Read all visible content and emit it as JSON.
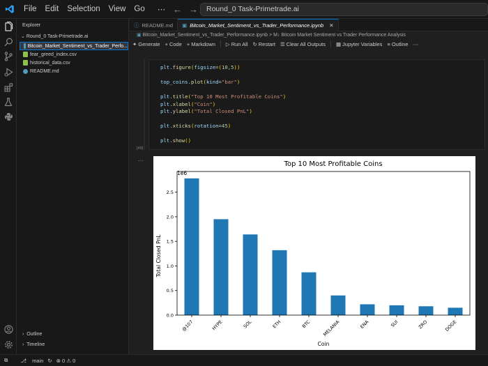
{
  "titlebar": {
    "menu": [
      "File",
      "Edit",
      "Selection",
      "View",
      "Go",
      "⋯"
    ],
    "search_text": "Round_0 Task-Primetrade.ai"
  },
  "sidebar": {
    "title": "Explorer",
    "folder": "Round_0 Task-Primetrade.ai",
    "files": [
      {
        "name": "Bitcoin_Market_Sentiment_vs_Trader_Perfo...",
        "color": "#519aba",
        "selected": true
      },
      {
        "name": "fear_greed_index.csv",
        "color": "#8dc149",
        "selected": false
      },
      {
        "name": "historical_data.csv",
        "color": "#8dc149",
        "selected": false
      },
      {
        "name": "README.md",
        "color": "#519aba",
        "selected": false
      }
    ],
    "outline": "Outline",
    "timeline": "Timeline"
  },
  "tabs": [
    {
      "label": "README.md",
      "active": false
    },
    {
      "label": "Bitcoin_Market_Sentiment_vs_Trader_Performance.ipynb",
      "active": true
    }
  ],
  "breadcrumb": {
    "file": "Bitcoin_Market_Sentiment_vs_Trader_Performance.ipynb",
    "sep": ">",
    "section": "M↓ Bitcoin Market Sentiment vs Trader Performance Analysis"
  },
  "toolbar": {
    "generate": "Generate",
    "code": "Code",
    "markdown": "Markdown",
    "run_all": "Run All",
    "restart": "Restart",
    "clear_outputs": "Clear All Outputs",
    "jupyter_variables": "Jupyter Variables",
    "outline": "Outline",
    "more": "⋯"
  },
  "cell": {
    "exec_count": "[49]",
    "lines": {
      "l1": "plt.figure(figsize=(10,5))",
      "l2": "top_coins.plot(kind=\"bar\")",
      "l3": "plt.title(\"Top 10 Most Profitable Coins\")",
      "l4": "plt.xlabel(\"Coin\")",
      "l5": "plt.ylabel(\"Total Closed PnL\")",
      "l6": "plt.xticks(rotation=45)",
      "l7": "plt.show()"
    },
    "output_menu": "⋯"
  },
  "statusbar": {
    "branch": "main",
    "problems": "⊗ 0 ⚠ 0"
  },
  "chart_data": {
    "type": "bar",
    "title": "Top 10 Most Profitable Coins",
    "xlabel": "Coin",
    "ylabel": "Total Closed PnL",
    "scale_label": "1e6",
    "categories": [
      "@107",
      "HYPE",
      "SOL",
      "ETH",
      "BTC",
      "MELANIA",
      "ENA",
      "SUI",
      "ZRO",
      "DOGE"
    ],
    "values": [
      2.78,
      1.95,
      1.64,
      1.32,
      0.87,
      0.4,
      0.22,
      0.2,
      0.18,
      0.15
    ],
    "yticks": [
      0.0,
      0.5,
      1.0,
      1.5,
      2.0,
      2.5
    ],
    "ylim": [
      0,
      2.92
    ],
    "bar_color": "#1f77b4",
    "tick_rotation": 45,
    "grid": false,
    "legend": "none"
  }
}
